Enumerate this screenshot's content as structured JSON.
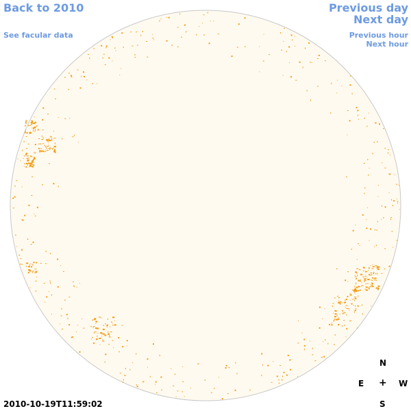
{
  "nav": {
    "back_label": "Back to 2010",
    "facular_label": "See facular data",
    "previous_day_label": "Previous day",
    "next_day_label": "Next day",
    "previous_hour_label": "Previous hour",
    "next_hour_label": "Next hour"
  },
  "compass": {
    "north": "N",
    "east": "E",
    "center": "+",
    "west": "W",
    "south": "S"
  },
  "timestamp": "2010-10-19T11:59:02",
  "colors": {
    "link": "#6e9be0",
    "disk_fill": "#fffaf0",
    "disk_border": "#c8c8c8",
    "facula": "#f39c12"
  }
}
